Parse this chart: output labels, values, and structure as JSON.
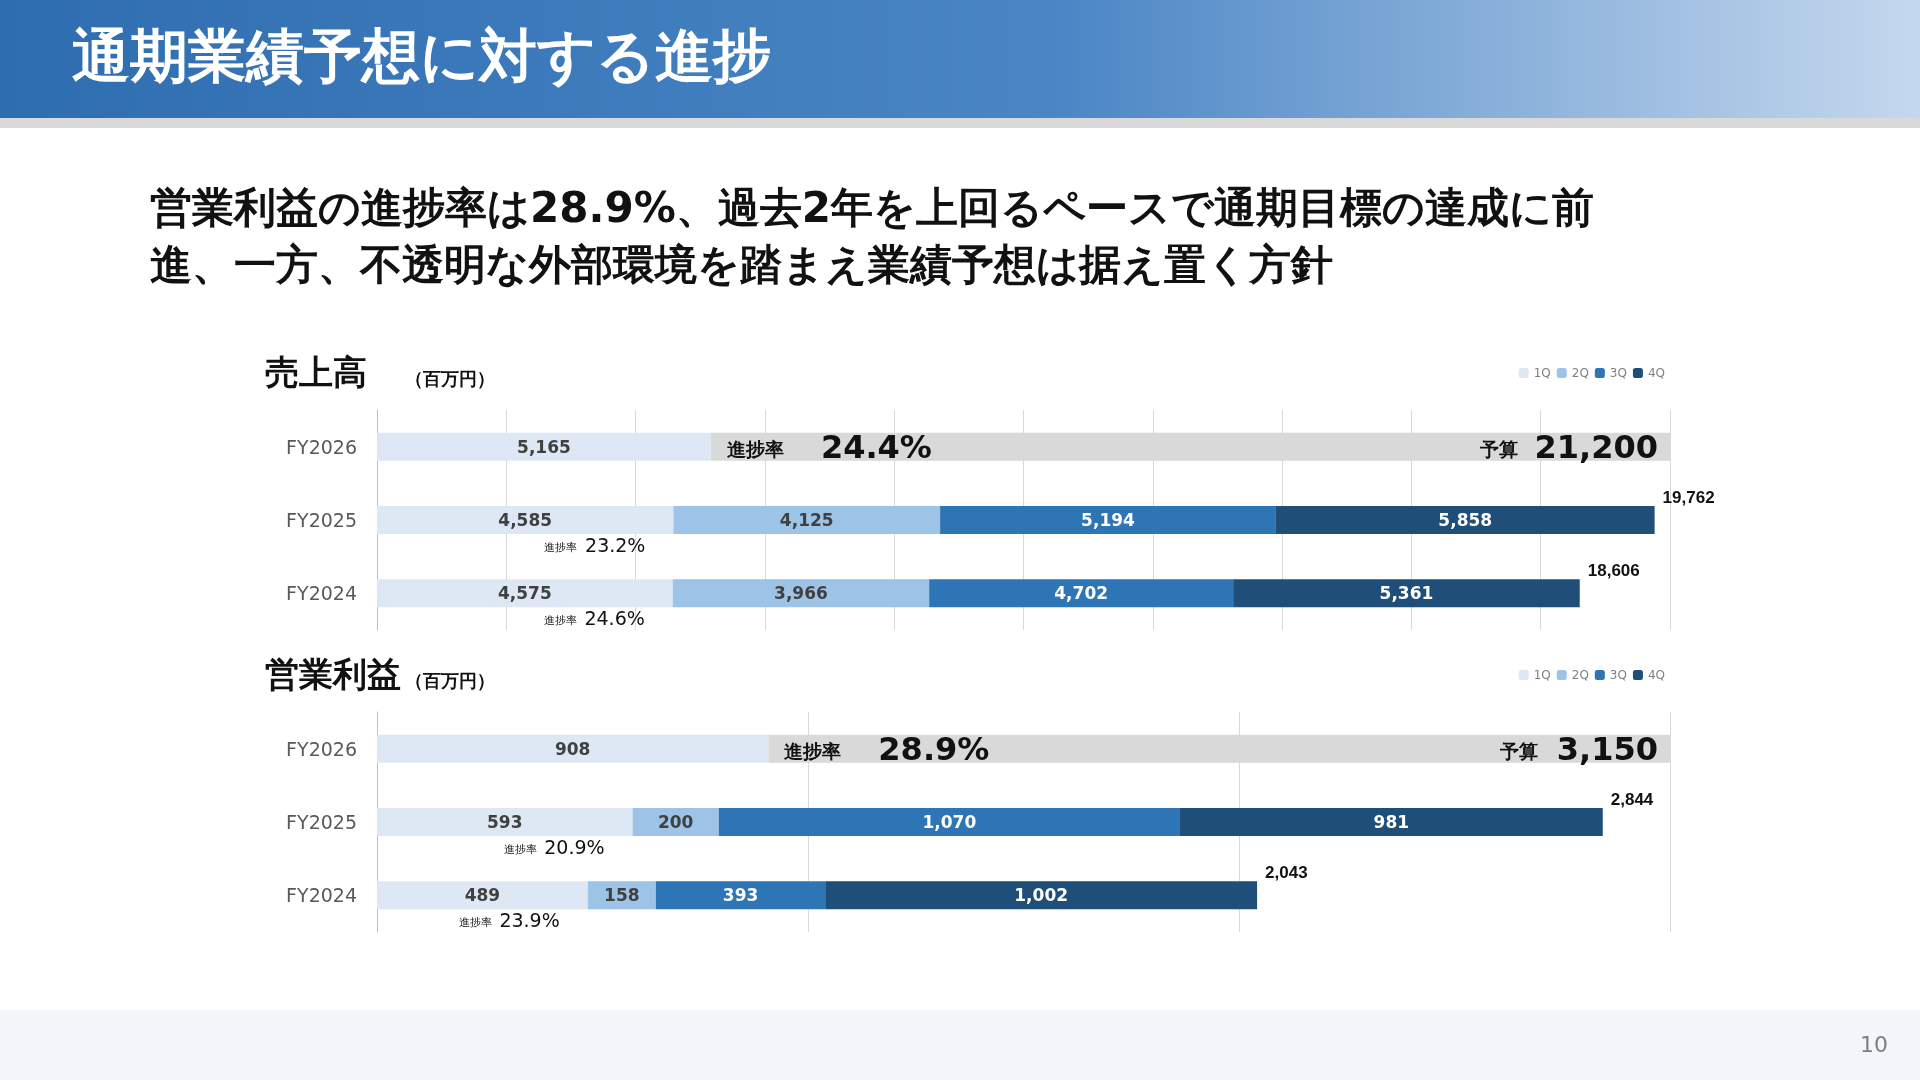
{
  "chart_data": [
    {
      "type": "bar",
      "orientation": "horizontal",
      "stacked": true,
      "title": "売上高",
      "subtitle": "（百万円）",
      "categories": [
        "FY2026",
        "FY2025",
        "FY2024"
      ],
      "series": [
        {
          "name": "1Q",
          "color": "#dde8f4",
          "values": [
            5165,
            4585,
            4575
          ],
          "value_labels": [
            "5,165",
            "4,585",
            "4,575"
          ]
        },
        {
          "name": "2Q",
          "color": "#9dc3e6",
          "values": [
            null,
            4125,
            3966
          ],
          "value_labels": [
            null,
            "4,125",
            "3,966"
          ]
        },
        {
          "name": "3Q",
          "color": "#2e75b6",
          "values": [
            null,
            5194,
            4702
          ],
          "value_labels": [
            null,
            "5,194",
            "4,702"
          ]
        },
        {
          "name": "4Q",
          "color": "#1f4e79",
          "values": [
            null,
            5858,
            5361
          ],
          "value_labels": [
            null,
            "5,858",
            "5,361"
          ]
        },
        {
          "color": "#d9d9d9",
          "values": [
            14835,
            null,
            null
          ]
        }
      ],
      "totals": [
        null,
        "19,762",
        "18,606"
      ],
      "xlim": [
        0,
        20000
      ],
      "xticks": [
        {
          "value": 0,
          "label": null
        },
        {
          "value": 2000,
          "label": null
        },
        {
          "value": 4000,
          "label": null
        },
        {
          "value": 6000,
          "label": null
        },
        {
          "value": 8000,
          "label": null
        },
        {
          "value": 10000,
          "label": null
        },
        {
          "value": 12000,
          "label": null
        },
        {
          "value": 14000,
          "label": null
        },
        {
          "value": 16000,
          "label": null
        },
        {
          "value": 18000,
          "label": null
        },
        {
          "value": 20000,
          "label": null
        }
      ],
      "grid": "x",
      "tick_labels": "y",
      "legend": "top right",
      "annotations": [
        "通期業績予想に対する進捗",
        "営業利益の進捗率は28.9%、過去2年を上回るペースで通期目標の達成に前進、一方、不透明な外部環境を踏まえ業績予想は据え置く方針",
        "進捗率",
        "24.4%",
        "予算",
        "21,200",
        "進捗率",
        "23.2%",
        "進捗率",
        "24.6%"
      ]
    },
    {
      "type": "bar",
      "orientation": "horizontal",
      "stacked": true,
      "title": "営業利益",
      "subtitle": "（百万円）",
      "categories": [
        "FY2026",
        "FY2025",
        "FY2024"
      ],
      "series": [
        {
          "name": "1Q",
          "color": "#dde8f4",
          "values": [
            908,
            593,
            489
          ],
          "value_labels": [
            "908",
            "593",
            "489"
          ]
        },
        {
          "name": "2Q",
          "color": "#9dc3e6",
          "values": [
            null,
            200,
            158
          ],
          "value_labels": [
            null,
            "200",
            "158"
          ]
        },
        {
          "name": "3Q",
          "color": "#2e75b6",
          "values": [
            null,
            1070,
            393
          ],
          "value_labels": [
            null,
            "1,070",
            "393"
          ]
        },
        {
          "name": "4Q",
          "color": "#1f4e79",
          "values": [
            null,
            981,
            1002
          ],
          "value_labels": [
            null,
            "981",
            "1,002"
          ]
        },
        {
          "color": "#d9d9d9",
          "values": [
            2092,
            null,
            null
          ]
        }
      ],
      "totals": [
        null,
        "2,844",
        "2,043"
      ],
      "xlim": [
        0,
        3000
      ],
      "xticks": [
        {
          "value": 0,
          "label": null
        },
        {
          "value": 1000,
          "label": null
        },
        {
          "value": 2000,
          "label": null
        },
        {
          "value": 3000,
          "label": null
        }
      ],
      "grid": "x",
      "tick_labels": "y",
      "legend": "top right",
      "annotations": [
        "10",
        "進捗率",
        "28.9%",
        "予算",
        "3,150",
        "進捗率",
        "20.9%",
        "進捗率",
        "23.9%"
      ]
    }
  ]
}
